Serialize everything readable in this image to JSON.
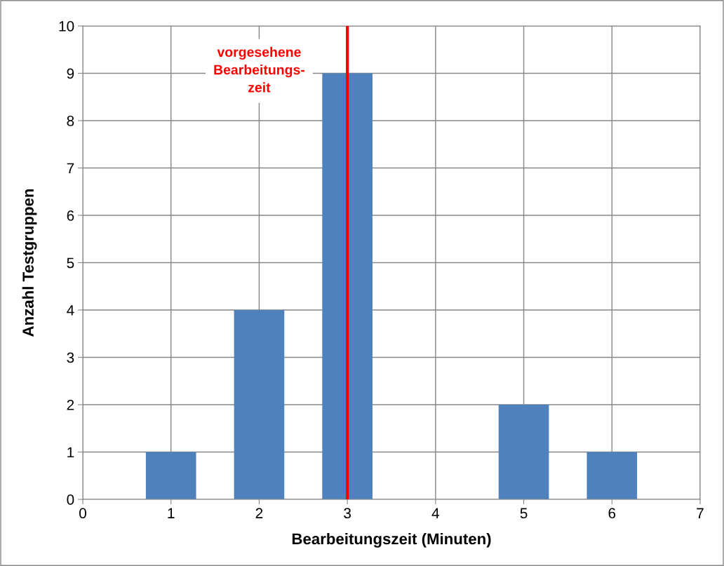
{
  "chart_data": {
    "type": "bar",
    "xlabel": "Bearbeitungszeit (Minuten)",
    "ylabel": "Anzahl Testgruppen",
    "x": [
      1,
      2,
      3,
      5,
      6
    ],
    "values": [
      1,
      4,
      9,
      2,
      1
    ],
    "color": "#4f81bd",
    "xlim": [
      0,
      7
    ],
    "xticks": [
      0,
      1,
      2,
      3,
      4,
      5,
      6,
      7
    ],
    "ylim": [
      0,
      10
    ],
    "yticks": [
      0,
      1,
      2,
      3,
      4,
      5,
      6,
      7,
      8,
      9,
      10
    ],
    "grid": true,
    "ref_lines": [
      {
        "axis": "x",
        "value": 3,
        "label": "vorgesehene\nBearbeitungs-\nzeit",
        "color": "#ff0000",
        "line_style": "solid"
      }
    ]
  }
}
